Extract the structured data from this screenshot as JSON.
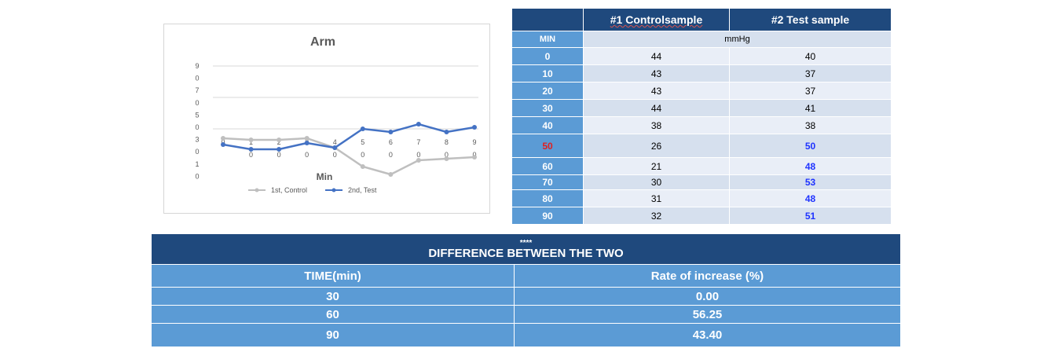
{
  "chart_data": {
    "type": "line",
    "title": "Arm",
    "xlabel": "Min",
    "x_ticks": [
      {
        "top": "0",
        "bottom": ""
      },
      {
        "top": "1",
        "bottom": "0"
      },
      {
        "top": "2",
        "bottom": "0"
      },
      {
        "top": "3",
        "bottom": "0"
      },
      {
        "top": "4",
        "bottom": "0"
      },
      {
        "top": "5",
        "bottom": "0"
      },
      {
        "top": "6",
        "bottom": "0"
      },
      {
        "top": "7",
        "bottom": "0"
      },
      {
        "top": "8",
        "bottom": "0"
      },
      {
        "top": "9",
        "bottom": "0"
      }
    ],
    "x": [
      0,
      10,
      20,
      30,
      40,
      50,
      60,
      70,
      80,
      90
    ],
    "y_tick_labels": [
      "9",
      "0",
      "7",
      "0",
      "5",
      "0",
      "3",
      "0",
      "1",
      "0"
    ],
    "ylim": [
      0,
      90
    ],
    "gridlines": [
      90,
      70,
      50
    ],
    "legend_position": "bottom",
    "series": [
      {
        "name": "1st, Control",
        "color": "#bfbfbf",
        "values": [
          44,
          43,
          43,
          44,
          38,
          26,
          21,
          30,
          31,
          32
        ]
      },
      {
        "name": "2nd, Test",
        "color": "#4472c4",
        "values": [
          40,
          37,
          37,
          41,
          38,
          50,
          48,
          53,
          48,
          51
        ]
      }
    ]
  },
  "measure_table": {
    "headers": [
      "",
      "#1 Controlsample",
      "#2 Test sample"
    ],
    "min_label": "MIN",
    "unit_label": "mmHg",
    "rows": [
      {
        "min": "0",
        "control": "44",
        "test": "40",
        "min_red": false,
        "test_blue": false
      },
      {
        "min": "10",
        "control": "43",
        "test": "37",
        "min_red": false,
        "test_blue": false
      },
      {
        "min": "20",
        "control": "43",
        "test": "37",
        "min_red": false,
        "test_blue": false
      },
      {
        "min": "30",
        "control": "44",
        "test": "41",
        "min_red": false,
        "test_blue": false
      },
      {
        "min": "40",
        "control": "38",
        "test": "38",
        "min_red": false,
        "test_blue": false
      },
      {
        "min": "50",
        "control": "26",
        "test": "50",
        "min_red": true,
        "test_blue": true
      },
      {
        "min": "60",
        "control": "21",
        "test": "48",
        "min_red": false,
        "test_blue": true
      },
      {
        "min": "70",
        "control": "30",
        "test": "53",
        "min_red": false,
        "test_blue": true
      },
      {
        "min": "80",
        "control": "31",
        "test": "48",
        "min_red": false,
        "test_blue": true
      },
      {
        "min": "90",
        "control": "32",
        "test": "51",
        "min_red": false,
        "test_blue": true
      }
    ]
  },
  "difference_table": {
    "stars": "****",
    "title": "DIFFERENCE BETWEEN THE TWO",
    "col_time": "TIME(min)",
    "col_rate": "Rate of increase (%)",
    "rows": [
      {
        "time": "30",
        "rate": "0.00"
      },
      {
        "time": "60",
        "rate": "56.25"
      },
      {
        "time": "90",
        "rate": "43.40"
      }
    ]
  }
}
